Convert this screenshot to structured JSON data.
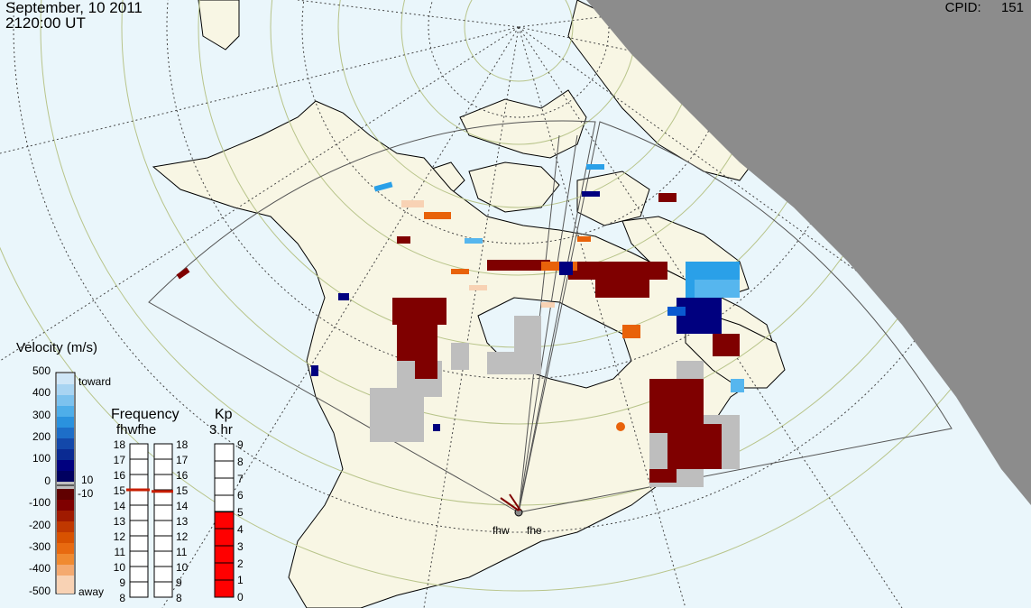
{
  "header": {
    "date": "September, 10 2011",
    "time": "2120:00 UT",
    "cpid_label": "CPID:",
    "cpid_value": "151"
  },
  "velocity_scale": {
    "title": "Velocity (m/s)",
    "ticks": [
      "500",
      "400",
      "300",
      "200",
      "100",
      "0",
      "-100",
      "-200",
      "-300",
      "-400",
      "-500"
    ],
    "toward_label": "toward",
    "away_label": "away",
    "threshold_pos": "10",
    "threshold_neg": "-10",
    "colors": {
      "toward_max": "#cfe6f7",
      "toward_mid": "#2aa0e8",
      "toward_low": "#00007f",
      "ground": "#bebebe",
      "away_low": "#7f0000",
      "away_mid": "#e8620a",
      "away_max": "#f8d2b4"
    }
  },
  "frequency_scale": {
    "title": "Frequency",
    "subtitle": "fhwfhe",
    "ticks": [
      "18",
      "17",
      "16",
      "15",
      "14",
      "13",
      "12",
      "11",
      "10",
      "9",
      "8"
    ],
    "fhw_mhz": 15.0,
    "fhe_mhz": 14.9
  },
  "kp_scale": {
    "title": "Kp",
    "subtitle": "3 hr",
    "ticks": [
      "9",
      "8",
      "7",
      "6",
      "5",
      "4",
      "3",
      "2",
      "1",
      "0"
    ],
    "value": 5
  },
  "stations": [
    {
      "code": "fhw"
    },
    {
      "code": "fhe"
    }
  ],
  "map_colors": {
    "ocean": "#eaf6fb",
    "land": "#f8f6e4",
    "night": "#8c8c8c",
    "latitude_circle": "#b8c48a"
  }
}
